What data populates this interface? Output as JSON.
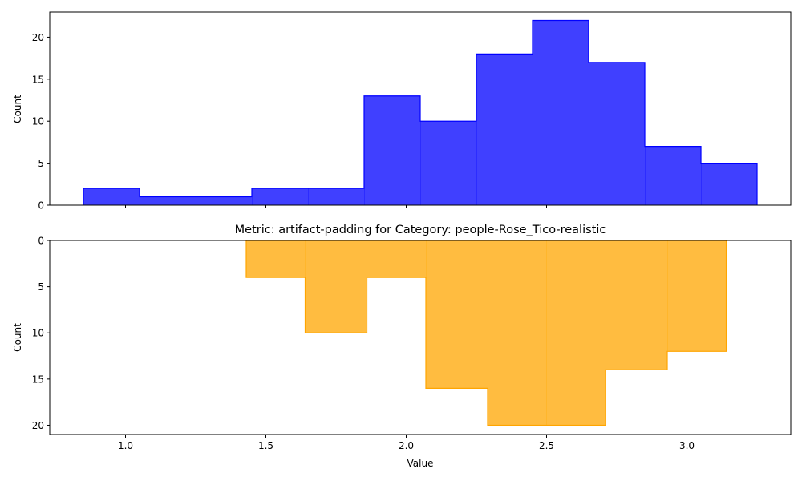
{
  "chart_data": [
    {
      "type": "histogram",
      "style": "stepfilled",
      "title": "",
      "xlabel": "",
      "ylabel": "Count",
      "color": "#0000ff",
      "fill_opacity": 0.75,
      "xlim": [
        0.73,
        3.37
      ],
      "ylim": [
        0,
        23
      ],
      "inverted_y": false,
      "x_ticks_labels_shown": false,
      "yticks": [
        0,
        5,
        10,
        15,
        20
      ],
      "bin_edges": [
        0.85,
        1.05,
        1.25,
        1.45,
        1.65,
        1.85,
        2.05,
        2.25,
        2.45,
        2.65,
        2.85,
        3.05,
        3.25
      ],
      "counts": [
        2,
        1,
        1,
        2,
        2,
        13,
        10,
        18,
        22,
        17,
        7,
        5
      ]
    },
    {
      "type": "histogram",
      "style": "stepfilled",
      "title": "Metric: artifact-padding for Category: people-Rose_Tico-realistic",
      "xlabel": "Value",
      "ylabel": "Count",
      "color": "#ffa500",
      "fill_opacity": 0.75,
      "xlim": [
        0.73,
        3.37
      ],
      "ylim": [
        21,
        0
      ],
      "inverted_y": true,
      "x_ticks_labels_shown": true,
      "xticks": [
        "1.0",
        "1.5",
        "2.0",
        "2.5",
        "3.0"
      ],
      "yticks": [
        0,
        5,
        10,
        15,
        20
      ],
      "bin_edges": [
        1.43,
        1.64,
        1.86,
        2.07,
        2.29,
        2.5,
        2.71,
        2.93,
        3.14
      ],
      "counts": [
        4,
        10,
        4,
        16,
        20,
        20,
        14,
        12
      ]
    }
  ]
}
